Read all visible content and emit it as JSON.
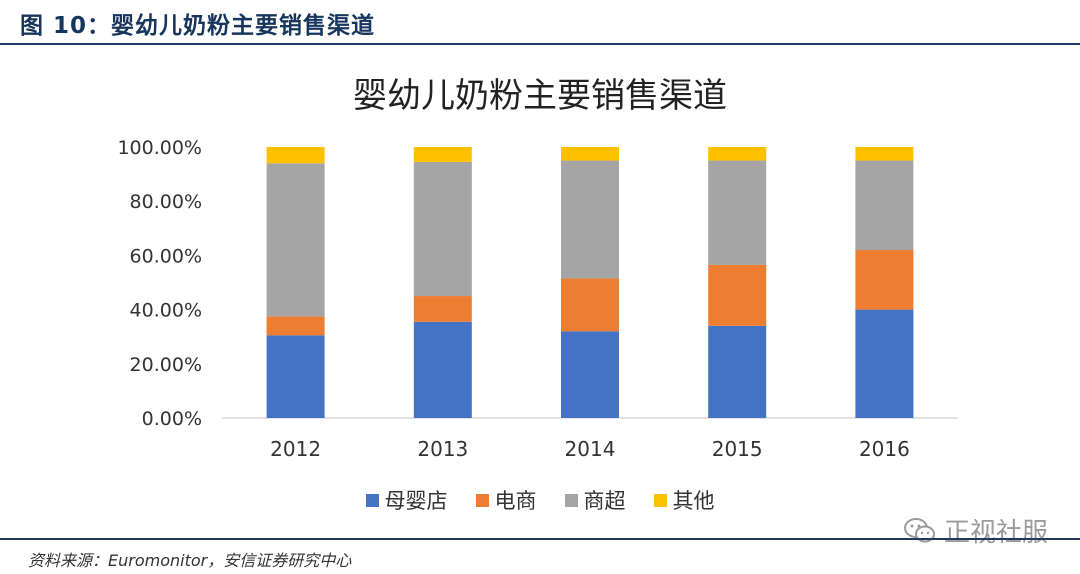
{
  "header": {
    "figure_label": "图 10：婴幼儿奶粉主要销售渠道"
  },
  "chart_data": {
    "type": "bar",
    "stacked": true,
    "title": "婴幼儿奶粉主要销售渠道",
    "categories": [
      "2012",
      "2013",
      "2014",
      "2015",
      "2016"
    ],
    "series": [
      {
        "name": "母婴店",
        "color": "#4472c4",
        "values": [
          30.5,
          35.5,
          32.0,
          34.0,
          40.0
        ]
      },
      {
        "name": "电商",
        "color": "#ed7d31",
        "values": [
          7.0,
          9.5,
          19.5,
          22.5,
          22.0
        ]
      },
      {
        "name": "商超",
        "color": "#a5a5a5",
        "values": [
          56.5,
          49.5,
          43.5,
          38.5,
          33.0
        ]
      },
      {
        "name": "其他",
        "color": "#ffc000",
        "values": [
          6.0,
          5.5,
          5.0,
          5.0,
          5.0
        ]
      }
    ],
    "ylim": [
      0,
      100
    ],
    "yticks": [
      "0.00%",
      "20.00%",
      "40.00%",
      "60.00%",
      "80.00%",
      "100.00%"
    ],
    "ytick_values": [
      0,
      20,
      40,
      60,
      80,
      100
    ],
    "xlabel": "",
    "ylabel": "",
    "grid": false,
    "legend_position": "bottom"
  },
  "footer": {
    "source": "资料来源：Euromonitor，安信证券研究中心"
  },
  "watermark": {
    "text": "正视社服",
    "icon": "wechat-icon"
  }
}
